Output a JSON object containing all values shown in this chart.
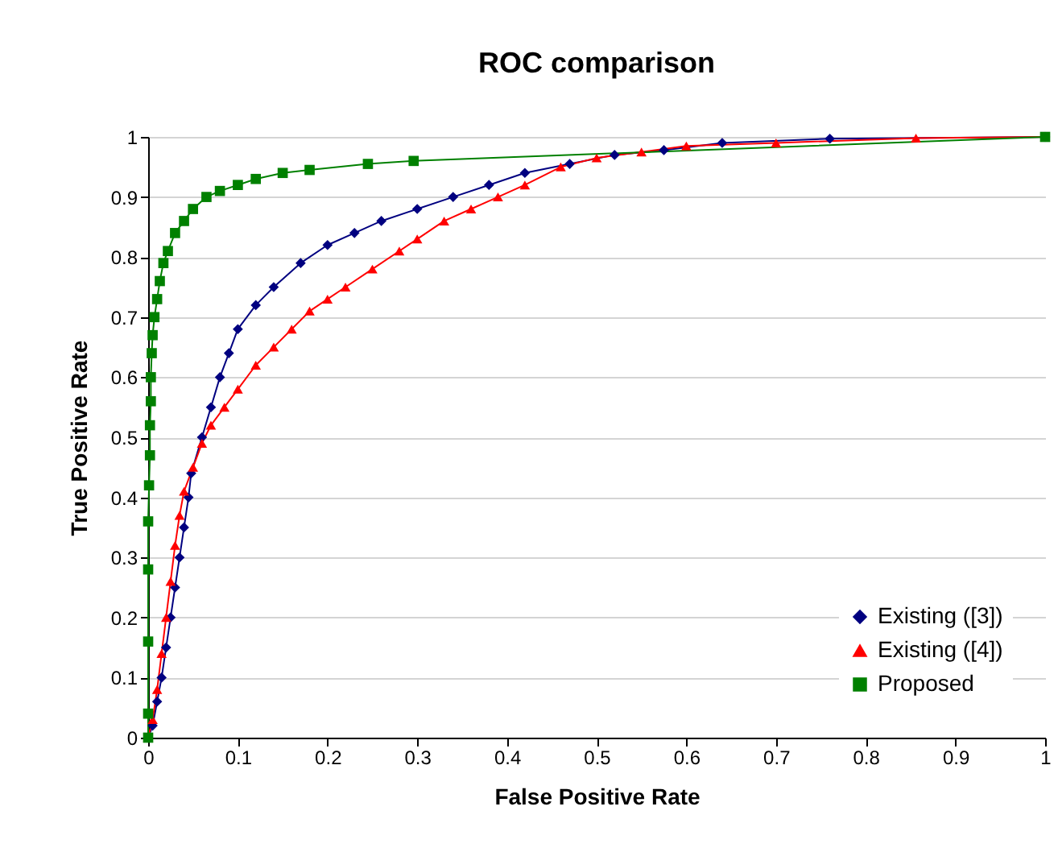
{
  "chart_data": {
    "type": "line",
    "title": "ROC  comparison",
    "xlabel": "False Positive Rate",
    "ylabel": "True Positive Rate",
    "xlim": [
      0,
      1
    ],
    "ylim": [
      0,
      1
    ],
    "xticks": [
      0,
      0.1,
      0.2,
      0.3,
      0.4,
      0.5,
      0.6,
      0.7,
      0.8,
      0.9,
      1
    ],
    "yticks": [
      0,
      0.1,
      0.2,
      0.3,
      0.4,
      0.5,
      0.6,
      0.7,
      0.8,
      0.9,
      1
    ],
    "grid": "y",
    "legend": "bottom right",
    "series": [
      {
        "name": "Existing ([3])",
        "color": "#000080",
        "marker": "diamond",
        "x": [
          0,
          0.005,
          0.01,
          0.015,
          0.02,
          0.025,
          0.03,
          0.035,
          0.04,
          0.045,
          0.048,
          0.06,
          0.07,
          0.08,
          0.09,
          0.1,
          0.12,
          0.14,
          0.17,
          0.2,
          0.23,
          0.26,
          0.3,
          0.34,
          0.38,
          0.42,
          0.47,
          0.52,
          0.575,
          0.64,
          0.76,
          1
        ],
        "values": [
          0,
          0.02,
          0.06,
          0.1,
          0.15,
          0.2,
          0.25,
          0.3,
          0.35,
          0.4,
          0.44,
          0.5,
          0.55,
          0.6,
          0.64,
          0.68,
          0.72,
          0.75,
          0.79,
          0.82,
          0.84,
          0.86,
          0.88,
          0.9,
          0.92,
          0.94,
          0.955,
          0.97,
          0.978,
          0.99,
          0.997,
          1
        ]
      },
      {
        "name": "Existing ([4])",
        "color": "#ff0000",
        "marker": "triangle",
        "x": [
          0,
          0.005,
          0.01,
          0.015,
          0.02,
          0.025,
          0.03,
          0.035,
          0.04,
          0.05,
          0.06,
          0.07,
          0.085,
          0.1,
          0.12,
          0.14,
          0.16,
          0.18,
          0.2,
          0.22,
          0.25,
          0.28,
          0.3,
          0.33,
          0.36,
          0.39,
          0.42,
          0.46,
          0.5,
          0.55,
          0.6,
          0.7,
          0.856,
          1
        ],
        "values": [
          0,
          0.03,
          0.08,
          0.14,
          0.2,
          0.26,
          0.32,
          0.37,
          0.41,
          0.45,
          0.49,
          0.52,
          0.55,
          0.58,
          0.62,
          0.65,
          0.68,
          0.71,
          0.73,
          0.75,
          0.78,
          0.81,
          0.83,
          0.86,
          0.88,
          0.9,
          0.92,
          0.95,
          0.965,
          0.975,
          0.985,
          0.99,
          0.998,
          1
        ]
      },
      {
        "name": "Proposed",
        "color": "#008000",
        "marker": "square",
        "x": [
          0,
          0,
          0,
          0,
          0,
          0.001,
          0.002,
          0.002,
          0.003,
          0.003,
          0.004,
          0.005,
          0.007,
          0.01,
          0.013,
          0.017,
          0.022,
          0.03,
          0.04,
          0.05,
          0.065,
          0.08,
          0.1,
          0.12,
          0.15,
          0.18,
          0.245,
          0.296,
          1
        ],
        "values": [
          0,
          0.04,
          0.16,
          0.28,
          0.36,
          0.42,
          0.47,
          0.52,
          0.56,
          0.6,
          0.64,
          0.67,
          0.7,
          0.73,
          0.76,
          0.79,
          0.81,
          0.84,
          0.86,
          0.88,
          0.9,
          0.91,
          0.92,
          0.93,
          0.94,
          0.945,
          0.955,
          0.96,
          1
        ]
      }
    ]
  }
}
